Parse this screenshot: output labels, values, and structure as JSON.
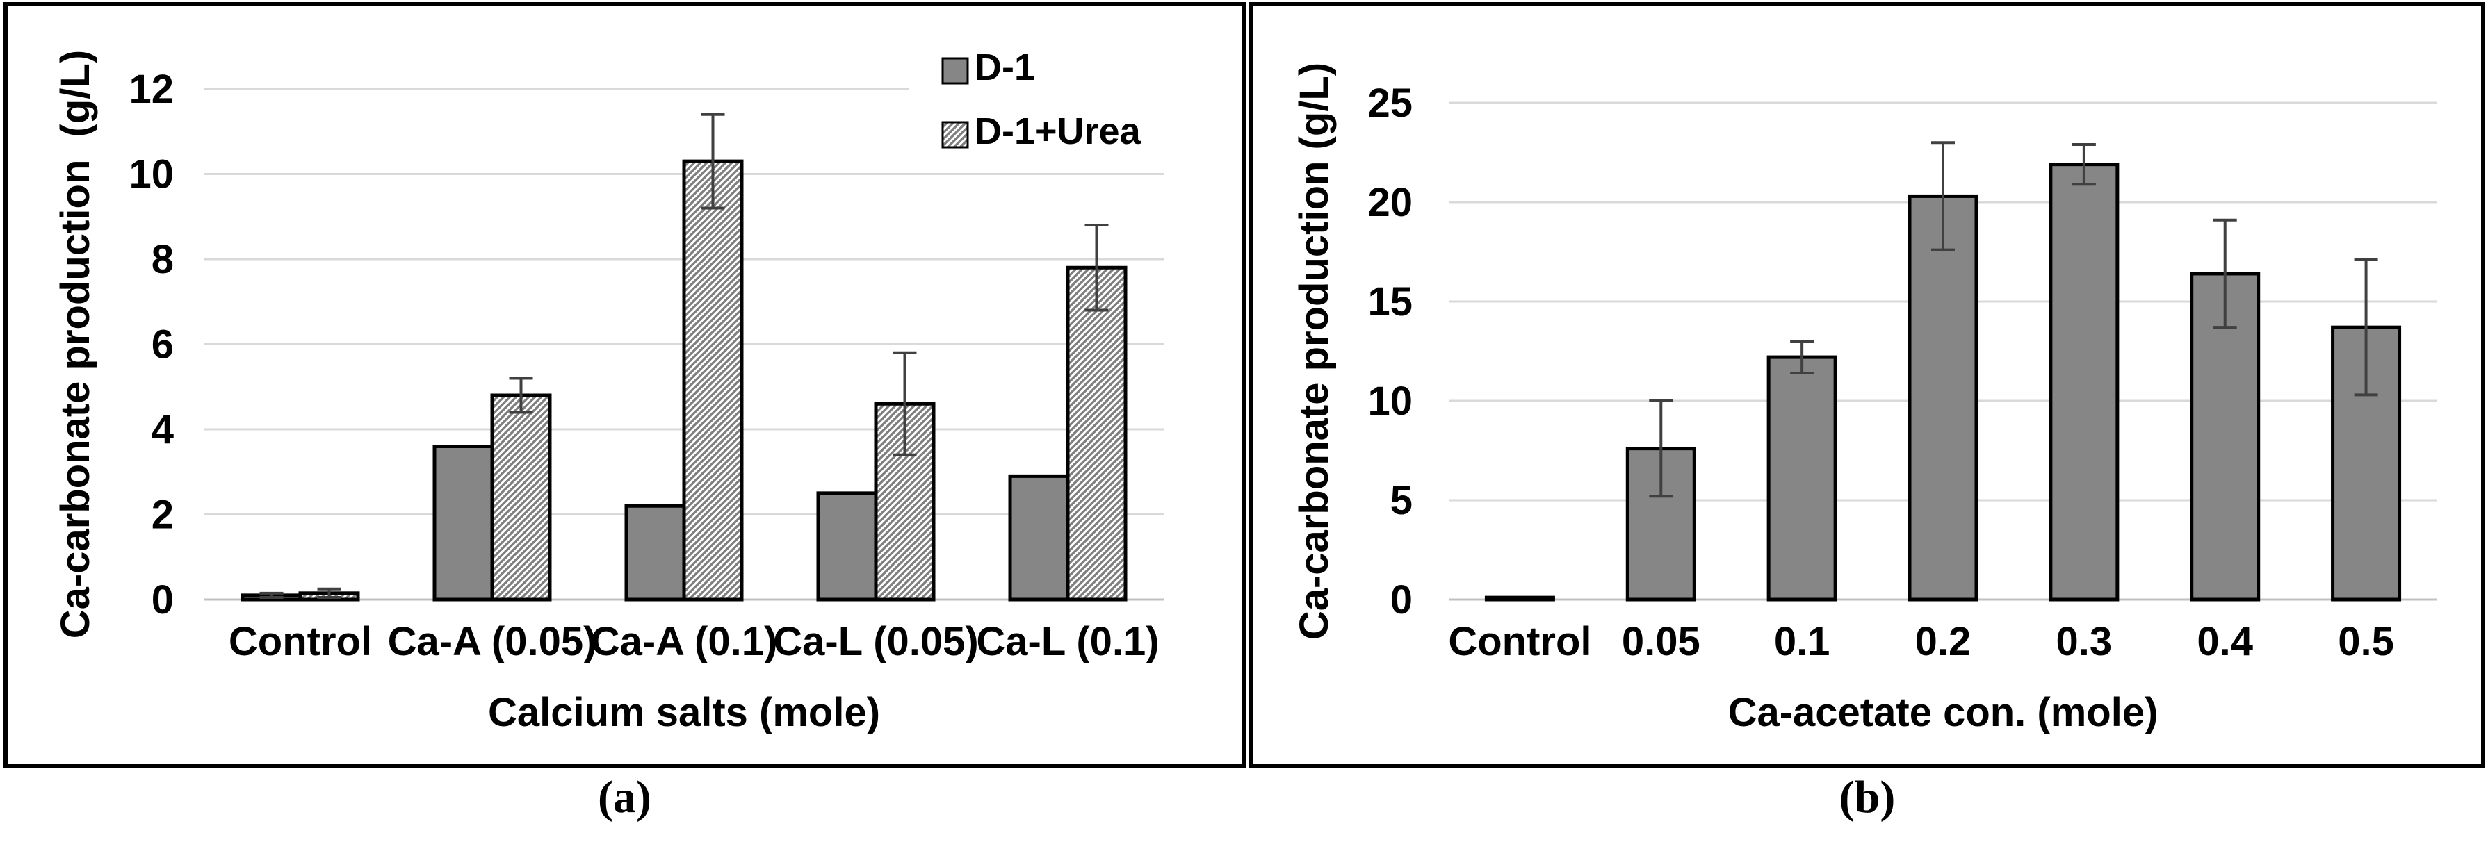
{
  "figure": {
    "caption_a": "(a)",
    "caption_b": "(b)"
  },
  "colors": {
    "bar_fill": "#868686",
    "bar_outline": "#000000",
    "hatch_stripe": "#7f7f7f",
    "hatch_bg": "#ffffff",
    "gridline": "#d9d9d9",
    "axis_line": "#c0c0c0",
    "error_bar": "#404040",
    "text": "#000000",
    "panel_border": "#000000"
  },
  "chart_data": [
    {
      "type": "bar",
      "panel": "a",
      "title": "",
      "ylabel": "Ca-carbonate production  (g/L)",
      "xlabel": "Calcium salts (mole)",
      "categories": [
        "Control",
        "Ca-A (0.05)",
        "Ca-A (0.1)",
        "Ca-L (0.05)",
        "Ca-L (0.1)"
      ],
      "ylim": [
        0,
        12
      ],
      "yticks": [
        0,
        2,
        4,
        6,
        8,
        10,
        12
      ],
      "grid": true,
      "legend_position": "top-right-inside",
      "series": [
        {
          "name": "D-1",
          "style": "solid",
          "values": [
            0.1,
            3.6,
            2.2,
            2.5,
            2.9
          ],
          "errors": [
            0.05,
            0,
            0,
            0,
            0
          ]
        },
        {
          "name": "D-1+Urea",
          "style": "hatched",
          "values": [
            0.15,
            4.8,
            10.3,
            4.6,
            7.8
          ],
          "errors": [
            0.1,
            0.4,
            1.1,
            1.2,
            1.0
          ]
        }
      ]
    },
    {
      "type": "bar",
      "panel": "b",
      "title": "",
      "ylabel": "Ca-carbonate production (g/L)",
      "xlabel": "Ca-acetate con. (mole)",
      "categories": [
        "Control",
        "0.05",
        "0.1",
        "0.2",
        "0.3",
        "0.4",
        "0.5"
      ],
      "ylim": [
        0,
        25
      ],
      "yticks": [
        0,
        5,
        10,
        15,
        20,
        25
      ],
      "grid": true,
      "legend_position": "none",
      "series": [
        {
          "style": "solid",
          "values": [
            0.1,
            7.6,
            12.2,
            20.3,
            21.9,
            16.4,
            13.7
          ],
          "errors": [
            0,
            2.4,
            0.8,
            2.7,
            1.0,
            2.7,
            3.4
          ]
        }
      ]
    }
  ]
}
